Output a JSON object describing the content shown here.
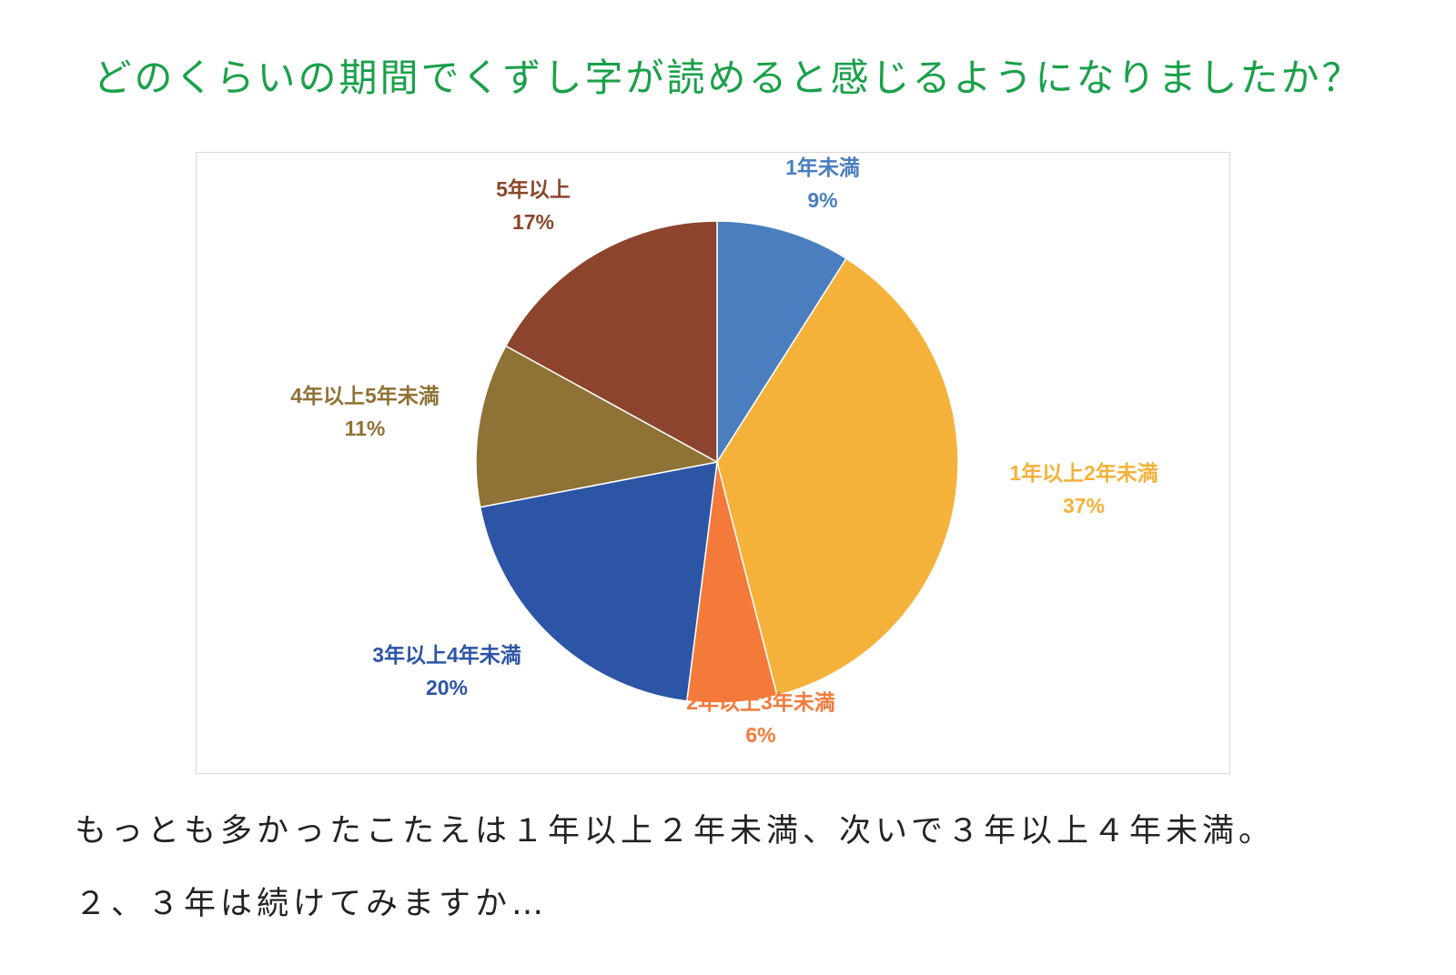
{
  "title": "どのくらいの期間でくずし字が読めると感じるようになりましたか？",
  "chart_data": {
    "type": "pie",
    "title": "",
    "start_angle_deg": 0,
    "direction": "clockwise",
    "legend": "none",
    "slices": [
      {
        "label": "1年未満",
        "value": 9,
        "value_label": "9%",
        "color": "#4a7ebf"
      },
      {
        "label": "1年以上2年未満",
        "value": 37,
        "value_label": "37%",
        "color": "#f4b23a"
      },
      {
        "label": "2年以上3年未満",
        "value": 6,
        "value_label": "6%",
        "color": "#f47a3c"
      },
      {
        "label": "3年以上4年未満",
        "value": 20,
        "value_label": "20%",
        "color": "#2d55a6"
      },
      {
        "label": "4年以上5年未満",
        "value": 11,
        "value_label": "11%",
        "color": "#8f7235"
      },
      {
        "label": "5年以上",
        "value": 17,
        "value_label": "17%",
        "color": "#8c452c"
      }
    ]
  },
  "caption": {
    "line1": "もっとも多かったこたえは１年以上２年未満、次いで３年以上４年未満。",
    "line2": "２、３年は続けてみますか…"
  }
}
